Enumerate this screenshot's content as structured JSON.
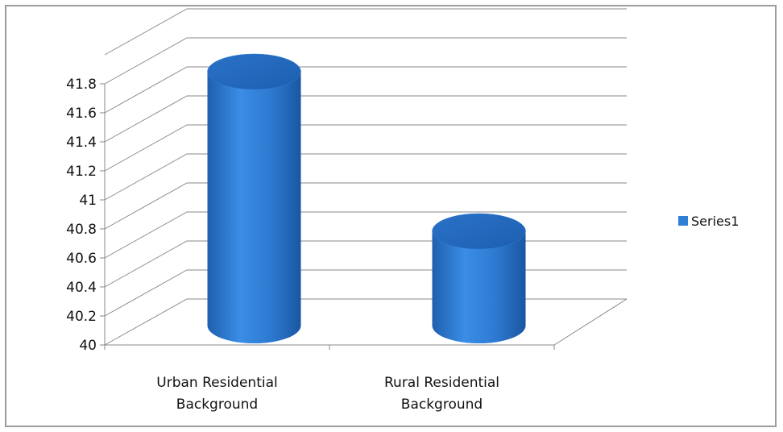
{
  "chart_data": {
    "type": "bar",
    "style": "3d-cylinder",
    "categories": [
      [
        "Urban Residential",
        "Background"
      ],
      [
        "Rural Residential",
        "Background"
      ]
    ],
    "series": [
      {
        "name": "Series1",
        "values": [
          41.75,
          40.65
        ],
        "color": "#2f7fd6"
      }
    ],
    "ylim": [
      40,
      41.8
    ],
    "yticks": [
      "40",
      "40.2",
      "40.4",
      "40.6",
      "40.8",
      "41",
      "41.2",
      "41.4",
      "41.6",
      "41.8"
    ],
    "grid": true,
    "legend": "right",
    "title": "",
    "xlabel": "",
    "ylabel": ""
  }
}
